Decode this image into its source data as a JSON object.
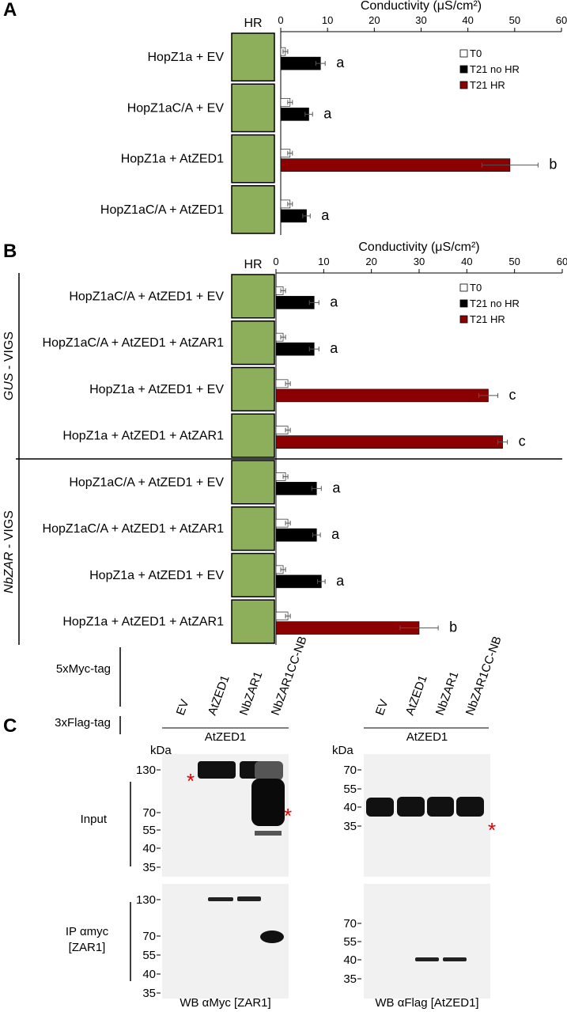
{
  "chart_data": [
    {
      "type": "bar",
      "panel": "A",
      "title": "Conductivity (μS/cm²)",
      "image_column_label": "HR",
      "categories": [
        "HopZ1a + EV",
        "HopZ1aC/A + EV",
        "HopZ1a + AtZED1",
        "HopZ1aC/A + AtZED1"
      ],
      "series": [
        {
          "name": "T0",
          "color": "#ffffff",
          "values": [
            1,
            2,
            2,
            2
          ],
          "errors": [
            0.5,
            0.5,
            0.5,
            0.5
          ]
        },
        {
          "name": "T21 no HR",
          "color": "#000000",
          "values": [
            8.5,
            6,
            null,
            5.5
          ],
          "errors": [
            1,
            0.8,
            null,
            0.8
          ]
        },
        {
          "name": "T21 HR",
          "color": "#8b0000",
          "values": [
            null,
            null,
            49,
            null
          ],
          "errors": [
            null,
            null,
            6,
            null
          ]
        }
      ],
      "letters": [
        "a",
        "a",
        "b",
        "a"
      ],
      "xlim": [
        0,
        60
      ],
      "xticks": [
        0,
        10,
        20,
        30,
        40,
        50,
        60
      ],
      "legend": "top-right"
    },
    {
      "type": "bar",
      "panel": "B",
      "title": "Conductivity (μS/cm²)",
      "image_column_label": "HR",
      "categories": [
        "HopZ1aC/A + AtZED1 + EV",
        "HopZ1aC/A + AtZED1 + AtZAR1",
        "HopZ1a + AtZED1 + EV",
        "HopZ1a + AtZED1 + AtZAR1",
        "HopZ1aC/A + AtZED1 + EV",
        "HopZ1aC/A + AtZED1 + AtZAR1",
        "HopZ1a + AtZED1 + EV",
        "HopZ1a + AtZED1 + AtZAR1"
      ],
      "groups": [
        {
          "gene": "GUS",
          "label": " - VIGS"
        },
        {
          "gene": "NbZAR",
          "label": " - VIGS"
        }
      ],
      "series": [
        {
          "name": "T0",
          "color": "#ffffff",
          "values": [
            1.5,
            1.5,
            2.5,
            2.5,
            2,
            2.5,
            1.5,
            2.5
          ],
          "errors": [
            0.5,
            0.5,
            0.5,
            0.5,
            0.5,
            0.5,
            0.5,
            0.5
          ]
        },
        {
          "name": "T21 no HR",
          "color": "#000000",
          "values": [
            8,
            8,
            null,
            null,
            8.5,
            8.5,
            9.5,
            null
          ],
          "errors": [
            1,
            1,
            null,
            null,
            1,
            0.8,
            0.8,
            null
          ]
        },
        {
          "name": "T21 HR",
          "color": "#8b0000",
          "values": [
            null,
            null,
            44.5,
            47.5,
            null,
            null,
            null,
            30
          ],
          "errors": [
            null,
            null,
            2,
            1,
            null,
            null,
            null,
            4
          ]
        }
      ],
      "letters": [
        "a",
        "a",
        "c",
        "c",
        "a",
        "a",
        "a",
        "b"
      ],
      "xlim": [
        0,
        60
      ],
      "xticks": [
        0,
        10,
        20,
        30,
        40,
        50,
        60
      ],
      "legend": "top-right"
    }
  ],
  "blot": {
    "panel": "C",
    "tag1": "5xMyc-tag",
    "tag2": "3xFlag-tag",
    "lanes": [
      "EV",
      "AtZED1",
      "NbZAR1",
      "NbZAR1CC-NB"
    ],
    "coexpressed": "AtZED1",
    "kda": "kDa",
    "input": "Input",
    "ip": [
      "IP αmyc",
      "[ZAR1]"
    ],
    "left_input_markers": [
      "130",
      "70",
      "55",
      "40",
      "35"
    ],
    "left_ip_markers": [
      "130",
      "70",
      "55",
      "40",
      "35"
    ],
    "right_input_markers": [
      "70",
      "55",
      "40",
      "35"
    ],
    "right_ip_markers": [
      "70",
      "55",
      "40",
      "35"
    ],
    "left_wb": "WB αMyc [ZAR1]",
    "right_wb": "WB αFlag [AtZED1]",
    "star": "*"
  }
}
